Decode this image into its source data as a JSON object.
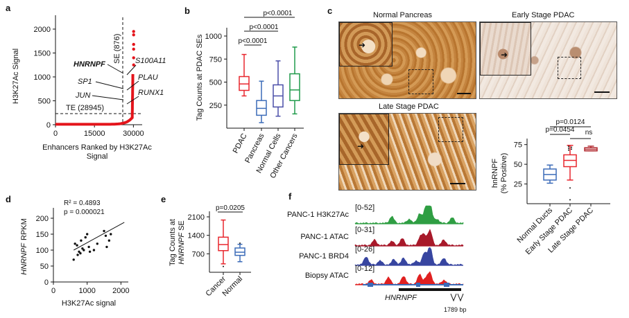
{
  "panels": {
    "a": "a",
    "b": "b",
    "c": "c",
    "d": "d",
    "e": "e",
    "f": "f"
  },
  "colors": {
    "red": "#e4141b",
    "pancreas_blue": "#3b6bb8",
    "normal_purple": "#4a4ea8",
    "other_green": "#1f9a4a",
    "cancer_red": "#e8262d",
    "late_red": "#b22a30",
    "green_track": "#2f9e43",
    "darkred_track": "#a8192a",
    "blue_track": "#3745a0",
    "red_track": "#e02020"
  },
  "chart_data": [
    {
      "id": "a",
      "type": "scatter",
      "ylabel": "H3K27Ac Signal",
      "xlabel_line1": "Enhancers Ranked by H3K27Ac",
      "xlabel_line2": "Signal",
      "xticks": [
        "0",
        "15000",
        "30000"
      ],
      "yticks": [
        "0",
        "500",
        "1000",
        "1500",
        "2000"
      ],
      "xlim": [
        0,
        31500
      ],
      "ylim": [
        0,
        2000
      ],
      "se_label": "SE (876)",
      "te_label": "TE (28945)",
      "te_threshold": 200,
      "se_rank": 28945,
      "genes": [
        {
          "name": "HNRNPF",
          "bold": true
        },
        {
          "name": "SP1",
          "bold": false
        },
        {
          "name": "JUN",
          "bold": false
        },
        {
          "name": "S100A11",
          "bold": false
        },
        {
          "name": "PLAU",
          "bold": false
        },
        {
          "name": "RUNX1",
          "bold": false
        }
      ],
      "top_points": [
        {
          "rank": 29821,
          "value": 1880
        },
        {
          "rank": 29821,
          "value": 1950
        },
        {
          "rank": 29821,
          "value": 1680
        },
        {
          "rank": 29821,
          "value": 1580
        },
        {
          "rank": 29821,
          "value": 1400
        },
        {
          "rank": 29821,
          "value": 1250
        }
      ]
    },
    {
      "id": "b",
      "type": "box",
      "ylabel": "Tag Counts at PDAC SEs",
      "yticks": [
        "250",
        "500",
        "750",
        "1000"
      ],
      "ylim": [
        0,
        1000
      ],
      "categories": [
        "PDAC",
        "Pancreas",
        "Normal Cells",
        "Other Cancers"
      ],
      "boxes": [
        {
          "min": 350,
          "q1": 410,
          "median": 480,
          "q3": 560,
          "max": 800
        },
        {
          "min": 60,
          "q1": 140,
          "median": 215,
          "q3": 300,
          "max": 510
        },
        {
          "min": 130,
          "q1": 230,
          "median": 350,
          "q3": 470,
          "max": 730
        },
        {
          "min": 155,
          "q1": 300,
          "median": 415,
          "q3": 590,
          "max": 880
        }
      ],
      "pvalues": [
        "p<0.0001",
        "p<0.0001",
        "p<0.0001"
      ]
    },
    {
      "id": "c_box",
      "type": "box",
      "ylabel_line1": "hnRNPF",
      "ylabel_line2": "(% Positive)",
      "yticks": [
        "25",
        "50",
        "75"
      ],
      "ylim": [
        0,
        80
      ],
      "categories": [
        "Normal Ducts",
        "Early Stage PDAC",
        "Late Stage PDAC"
      ],
      "boxes": [
        {
          "min": 26,
          "q1": 30,
          "median": 37,
          "q3": 44,
          "max": 49
        },
        {
          "min": 30,
          "q1": 47,
          "median": 55,
          "q3": 62,
          "max": 74
        },
        {
          "min": 67,
          "q1": 67,
          "median": 69,
          "q3": 71,
          "max": 73
        }
      ],
      "outliers": [
        5,
        20
      ],
      "pvalues": [
        "p=0.0124",
        "p=0.0454",
        "ns"
      ]
    },
    {
      "id": "d",
      "type": "scatter",
      "ylabel_gene": "HNRNPF",
      "ylabel_unit": "RPKM",
      "xlabel": "H3K27Ac signal",
      "xticks": [
        "0",
        "1000",
        "2000"
      ],
      "yticks": [
        "0",
        "50",
        "100",
        "150",
        "200"
      ],
      "xlim": [
        0,
        2200
      ],
      "ylim": [
        0,
        200
      ],
      "r2": "R² = 0.4893",
      "p": "p = 0.000021",
      "x": [
        600,
        640,
        700,
        720,
        760,
        800,
        820,
        860,
        900,
        950,
        1000,
        1050,
        1080,
        1200,
        1300,
        1500,
        1550,
        1580,
        1650,
        1700
      ],
      "y": [
        70,
        120,
        115,
        85,
        95,
        90,
        130,
        105,
        100,
        140,
        150,
        110,
        95,
        100,
        120,
        160,
        145,
        110,
        130,
        150
      ],
      "fit": {
        "x": [
          600,
          2100
        ],
        "y": [
          100,
          187
        ]
      }
    },
    {
      "id": "e",
      "type": "box",
      "ylabel_line1": "Tag Counts at",
      "ylabel_line2_gene": "HNRNPF",
      "ylabel_line2_suffix": "SE",
      "yticks": [
        "700",
        "1400",
        "2100"
      ],
      "ylim": [
        0,
        2100
      ],
      "categories": [
        "Cancer",
        "Normal"
      ],
      "boxes": [
        {
          "min": 320,
          "q1": 820,
          "median": 1050,
          "q3": 1330,
          "max": 1980
        },
        {
          "min": 400,
          "q1": 640,
          "median": 760,
          "q3": 920,
          "max": 1060
        }
      ],
      "outliers": [
        300
      ],
      "pvalue": "p=0.0205"
    },
    {
      "id": "f",
      "type": "tracks",
      "tracks": [
        {
          "label": "PANC-1 H3K27Ac",
          "range": "[0-52]"
        },
        {
          "label": "PANC-1 ATAC",
          "range": "[0-31]"
        },
        {
          "label": "PANC-1 BRD4",
          "range": "[0-26]"
        },
        {
          "label": "Biopsy  ATAC",
          "range": "[0-12]"
        }
      ],
      "gene": "HNRNPF",
      "scale": "1789 bp"
    }
  ],
  "micrographs": [
    {
      "title": "Normal  Pancreas"
    },
    {
      "title": "Early Stage PDAC"
    },
    {
      "title": "Late Stage PDAC"
    }
  ]
}
